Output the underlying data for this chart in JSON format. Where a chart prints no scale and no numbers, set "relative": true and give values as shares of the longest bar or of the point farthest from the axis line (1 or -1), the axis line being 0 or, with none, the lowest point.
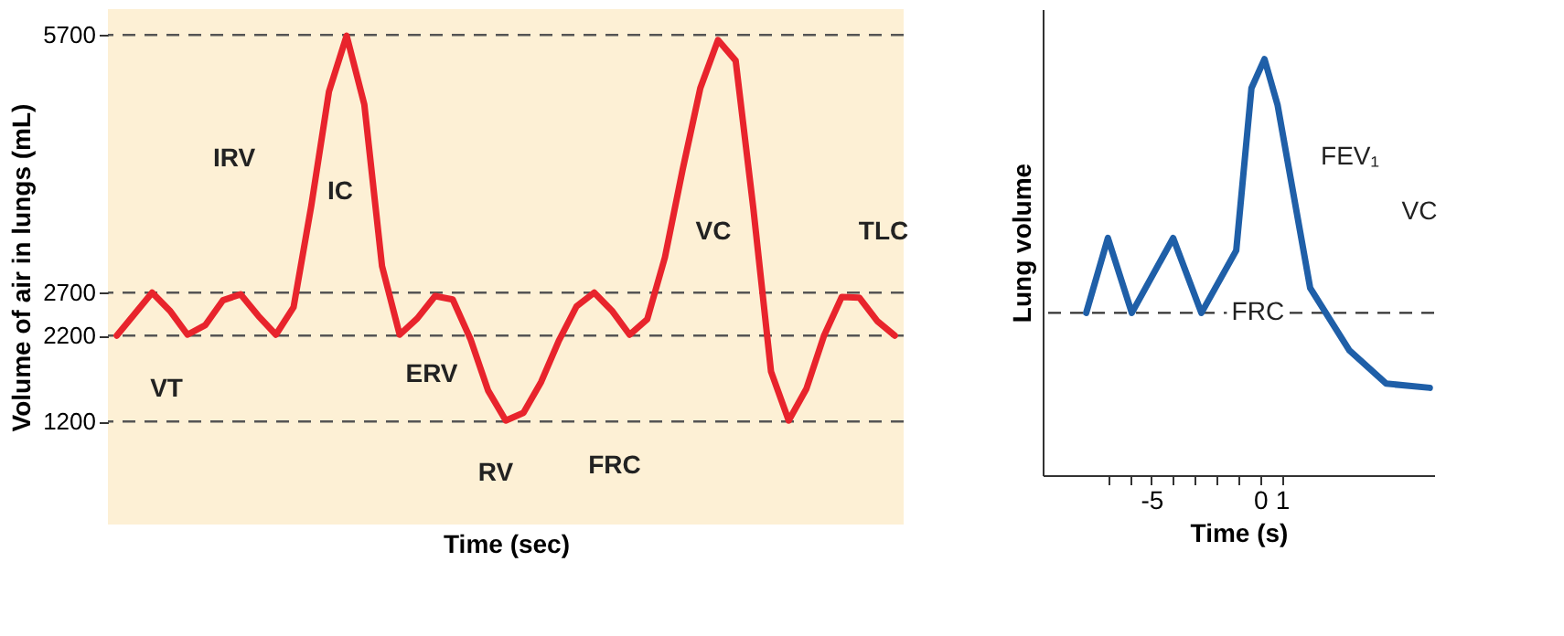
{
  "chart_data": [
    {
      "type": "line",
      "xlabel": "Time (sec)",
      "ylabel": "Volume of air in lungs (mL)",
      "ylim": [
        0,
        6000
      ],
      "yticks": [
        1200,
        2200,
        2700,
        5700
      ],
      "tick_labels": "y",
      "categories": [
        null,
        null,
        null,
        null,
        null,
        null,
        null,
        null,
        null,
        null,
        null,
        null,
        null,
        null,
        null,
        null,
        null,
        null,
        null,
        null,
        null,
        null,
        null,
        null,
        null,
        null,
        null,
        null,
        null,
        null,
        null,
        null,
        null,
        null,
        null,
        null,
        null,
        null,
        null,
        null,
        null,
        null,
        null,
        null,
        null
      ],
      "ref_lines": [
        {
          "axis": "y",
          "value": 5700,
          "color": "#555555",
          "line_style": "dashed"
        },
        {
          "axis": "y",
          "value": 2700,
          "color": "#555555",
          "line_style": "dashed"
        },
        {
          "axis": "y",
          "value": 2200,
          "color": "#555555",
          "line_style": "dashed"
        },
        {
          "axis": "y",
          "value": 1200,
          "color": "#555555",
          "line_style": "dashed"
        }
      ],
      "annotations": [
        "VT",
        "IRV",
        "IC",
        "ERV",
        "RV",
        "FRC",
        "VC",
        "TLC"
      ],
      "series": [
        {
          "color": "#e8242c",
          "values": [
            2200,
            2450,
            2700,
            2490,
            2210,
            2320,
            2610,
            2680,
            2430,
            2210,
            2530,
            3710,
            5040,
            5690,
            4890,
            3010,
            2210,
            2400,
            2660,
            2620,
            2160,
            1560,
            1210,
            1300,
            1660,
            2140,
            2540,
            2700,
            2490,
            2210,
            2390,
            3110,
            4130,
            5080,
            5640,
            5400,
            3680,
            1780,
            1210,
            1580,
            2200,
            2650,
            2640,
            2370,
            2200
          ]
        }
      ]
    },
    {
      "type": "line",
      "relative": true,
      "xlabel": "Time (s)",
      "ylabel": "Lung volume",
      "xlim": [
        -10,
        8
      ],
      "xticks": [
        {
          "value": -7,
          "label": null
        },
        {
          "value": -6,
          "label": null
        },
        -5,
        {
          "value": -4,
          "label": null
        },
        {
          "value": -3,
          "label": null
        },
        {
          "value": -2,
          "label": null
        },
        {
          "value": -1,
          "label": null
        },
        0,
        1
      ],
      "ref_lines": [
        {
          "axis": "y",
          "value": 0.39,
          "label": "FRC",
          "color": "#333333",
          "line_style": "dashed"
        }
      ],
      "annotations": [
        "FEV₁",
        "VC"
      ],
      "series": [
        {
          "color": "#1f5fa8",
          "x": [
            -8.0,
            -7.0,
            -5.9,
            -4.0,
            -2.7,
            -1.1,
            -0.4,
            0.2,
            0.8,
            2.3,
            4.1,
            5.8,
            7.8
          ],
          "values": [
            0.39,
            0.57,
            0.39,
            0.57,
            0.39,
            0.54,
            0.93,
            1.0,
            0.89,
            0.45,
            0.3,
            0.22,
            0.21
          ]
        }
      ]
    }
  ]
}
